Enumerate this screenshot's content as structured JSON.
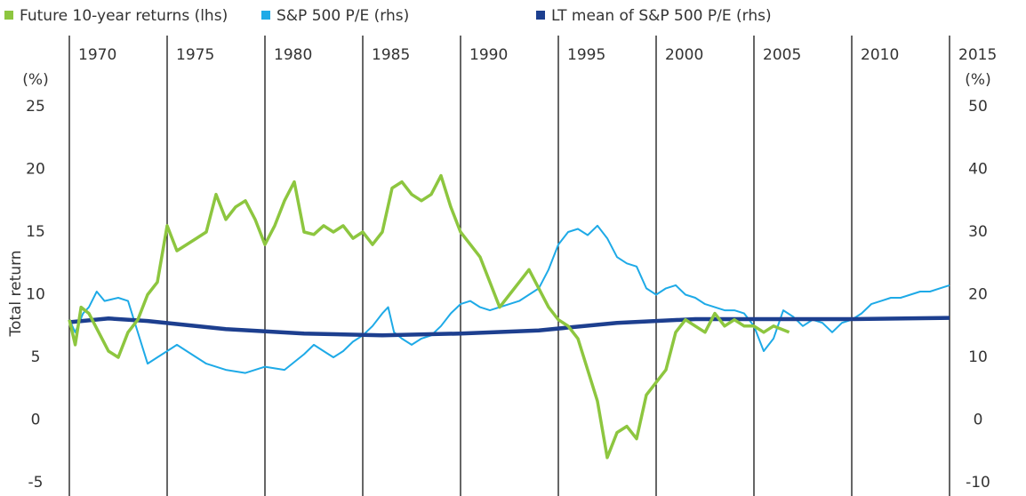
{
  "chart_data": {
    "type": "line",
    "ylabel": "Total return",
    "yunit": "(%)",
    "y2unit": "(%)",
    "xlim": [
      1970,
      2015
    ],
    "xticks": [
      1970,
      1975,
      1980,
      1985,
      1990,
      1995,
      2000,
      2005,
      2010,
      2015
    ],
    "ylim": [
      -5,
      25
    ],
    "yticks": [
      -5,
      0,
      5,
      10,
      15,
      20,
      25
    ],
    "y2lim": [
      -10,
      50
    ],
    "y2ticks": [
      -10,
      0,
      10,
      20,
      30,
      40,
      50
    ],
    "grid": "x",
    "legend": "top",
    "series": [
      {
        "name": "Future 10-year returns (lhs)",
        "color": "#8dc63f",
        "axis": "y",
        "x": [
          1970,
          1970.3,
          1970.6,
          1971,
          1971.5,
          1972,
          1972.5,
          1973,
          1973.5,
          1974,
          1974.5,
          1975,
          1975.5,
          1976,
          1976.5,
          1977,
          1977.5,
          1978,
          1978.5,
          1979,
          1979.5,
          1980,
          1980.5,
          1981,
          1981.5,
          1982,
          1982.5,
          1983,
          1983.5,
          1984,
          1984.5,
          1985,
          1985.5,
          1986,
          1986.5,
          1987,
          1987.5,
          1988,
          1988.5,
          1989,
          1989.5,
          1990,
          1990.5,
          1991,
          1991.5,
          1992,
          1992.5,
          1993,
          1993.5,
          1994,
          1994.5,
          1995,
          1995.5,
          1996,
          1996.5,
          1997,
          1997.5,
          1998,
          1998.5,
          1999,
          1999.5,
          2000,
          2000.5,
          2001,
          2001.5,
          2002,
          2002.5,
          2003,
          2003.5,
          2004,
          2004.5,
          2005,
          2005.5,
          2006,
          2006.8
        ],
        "values": [
          8,
          6,
          9,
          8.5,
          7,
          5.5,
          5,
          7,
          8,
          10,
          11,
          15.5,
          13.5,
          14,
          14.5,
          15,
          18,
          16,
          17,
          17.5,
          16,
          14,
          15.5,
          17.5,
          19,
          15,
          14.8,
          15.5,
          15,
          15.5,
          14.5,
          15,
          14,
          15,
          18.5,
          19,
          18,
          17.5,
          18,
          19.5,
          17,
          15,
          14,
          13,
          11,
          9,
          10,
          11,
          12,
          10.5,
          9,
          8,
          7.5,
          6.5,
          4,
          1.5,
          -3,
          -1,
          -0.5,
          -1.5,
          2,
          3,
          4,
          7,
          8,
          7.5,
          7,
          8.5,
          7.5,
          8,
          7.5,
          7.5,
          7,
          7.5,
          7
        ]
      },
      {
        "name": "S&P 500 P/E (rhs)",
        "color": "#1eaae7",
        "axis": "y2",
        "x": [
          1970,
          1970.3,
          1970.7,
          1971,
          1971.4,
          1971.8,
          1972.5,
          1973,
          1973.5,
          1974,
          1974.5,
          1975,
          1975.5,
          1976,
          1977,
          1978,
          1979,
          1980,
          1981,
          1982,
          1982.5,
          1983,
          1983.5,
          1984,
          1984.5,
          1985,
          1985.5,
          1986,
          1986.3,
          1986.6,
          1987,
          1987.5,
          1988,
          1988.5,
          1989,
          1989.5,
          1990,
          1990.5,
          1991,
          1991.5,
          1992,
          1992.5,
          1993,
          1993.5,
          1994,
          1994.5,
          1995,
          1995.5,
          1996,
          1996.5,
          1997,
          1997.5,
          1998,
          1998.5,
          1999,
          1999.5,
          2000,
          2000.5,
          2001,
          2001.5,
          2002,
          2002.5,
          2003,
          2003.5,
          2004,
          2004.5,
          2005,
          2005.5,
          2006,
          2006.5,
          2007,
          2007.5,
          2008,
          2008.5,
          2009,
          2009.5,
          2010,
          2010.5,
          2011,
          2011.5,
          2012,
          2012.5,
          2013,
          2013.5,
          2014,
          2014.5,
          2015
        ],
        "values": [
          16,
          14,
          17,
          18,
          20.5,
          19,
          19.5,
          19,
          14,
          9,
          10,
          11,
          12,
          11,
          9,
          8,
          7.5,
          8.5,
          8,
          10.5,
          12,
          11,
          10,
          11,
          12.5,
          13.5,
          15,
          17,
          18,
          14,
          13,
          12,
          13,
          13.5,
          15,
          17,
          18.5,
          19,
          18,
          17.5,
          18,
          18.5,
          19,
          20,
          21,
          24,
          28,
          30,
          30.5,
          29.5,
          31,
          29,
          26,
          25,
          24.5,
          21,
          20,
          21,
          21.5,
          20,
          19.5,
          18.5,
          18,
          17.5,
          17.5,
          17,
          15,
          11,
          13,
          17.5,
          16.5,
          15,
          16,
          15.5,
          14,
          15.5,
          16,
          17,
          18.5,
          19,
          19.5,
          19.5,
          20,
          20.5,
          20.5,
          21,
          21.5
        ]
      },
      {
        "name": "LT mean of S&P 500 P/E (rhs)",
        "color": "#1d3f8f",
        "axis": "y2",
        "x": [
          1970,
          1972,
          1974,
          1978,
          1982,
          1986,
          1990,
          1994,
          1998,
          2002,
          2006,
          2010,
          2015
        ],
        "values": [
          15.6,
          16.2,
          15.8,
          14.5,
          13.8,
          13.5,
          13.8,
          14.3,
          15.5,
          16.1,
          16.1,
          16.1,
          16.3
        ]
      }
    ]
  }
}
